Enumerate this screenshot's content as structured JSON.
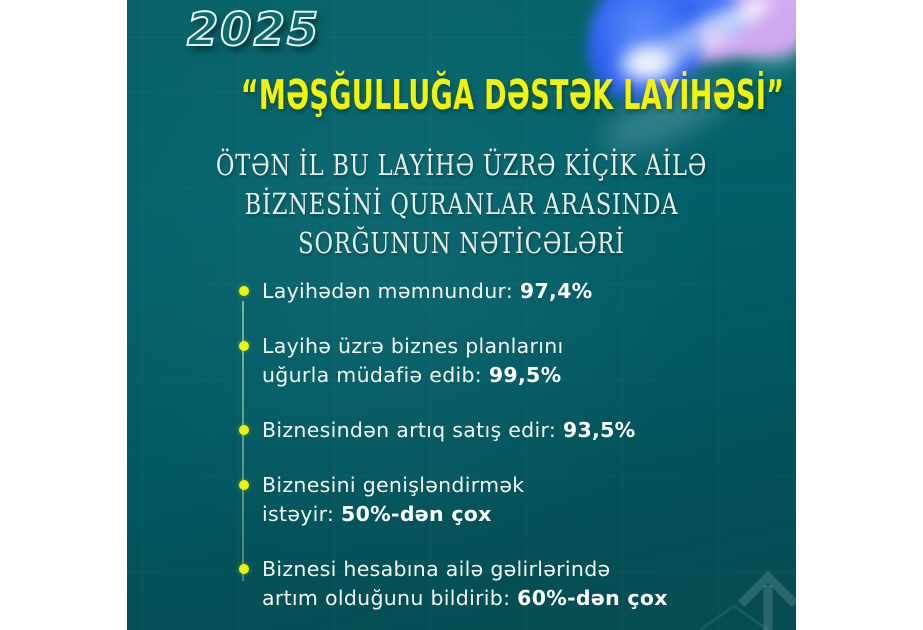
{
  "poster": {
    "year": "2025",
    "title": "“MƏŞĞULLUĞA DƏSTƏK LAYİHƏSİ”",
    "subtitle_lines": [
      "ÖTƏN İL BU LAYİHƏ ÜZRƏ KİÇİK AİLƏ",
      "BİZNESİNİ QURANLAR ARASINDA",
      "SORĞUNUN NƏTİCƏLƏRİ"
    ],
    "bullets": [
      {
        "lines": [
          "Layihədən məmnundur:"
        ],
        "value": "97,4%"
      },
      {
        "lines": [
          "Layihə üzrə biznes planlarını",
          "uğurla müdafiə edib:"
        ],
        "value": "99,5%"
      },
      {
        "lines": [
          "Biznesindən artıq satış edir:"
        ],
        "value": "93,5%"
      },
      {
        "lines": [
          "Biznesini genişləndirmək",
          "istəyir:"
        ],
        "value": "50%-dən çox"
      },
      {
        "lines": [
          "Biznesi hesabına ailə gəlirlərində",
          "artım olduğunu bildirib:"
        ],
        "value": "60%-dən çox"
      }
    ],
    "colors": {
      "background_teal": "#02616A",
      "accent_yellow": "#F2F403",
      "text_white": "#F3F6F2",
      "blob_blue": "#2E62F1",
      "blob_lavender": "#D3ACF2"
    },
    "icons": {
      "up_arrow": "up-arrow-icon",
      "triangle_outline": "triangle-outline-icon"
    }
  }
}
